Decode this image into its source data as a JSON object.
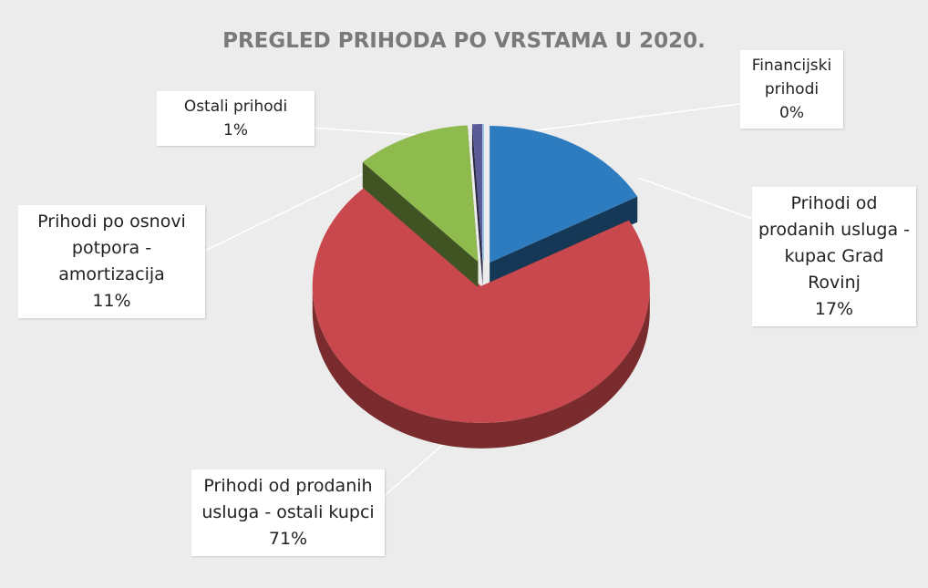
{
  "chart_data": {
    "type": "pie",
    "title": "PREGLED PRIHODA PO VRSTAMA U 2020.",
    "categories": [
      "Prihodi od prodanih usluga - kupac Grad Rovinj",
      "Prihodi od prodanih usluga - ostali kupci",
      "Prihodi po osnovi potpora - amortizacija",
      "Ostali prihodi",
      "Financijski prihodi"
    ],
    "values": [
      17,
      71,
      11,
      1,
      0
    ],
    "value_labels": [
      "17%",
      "71%",
      "11%",
      "1%",
      "0%"
    ],
    "colors": [
      "#2e7cc0",
      "#c9484d",
      "#8fbb4e",
      "#5a5a96",
      "#9cc2e8"
    ]
  }
}
